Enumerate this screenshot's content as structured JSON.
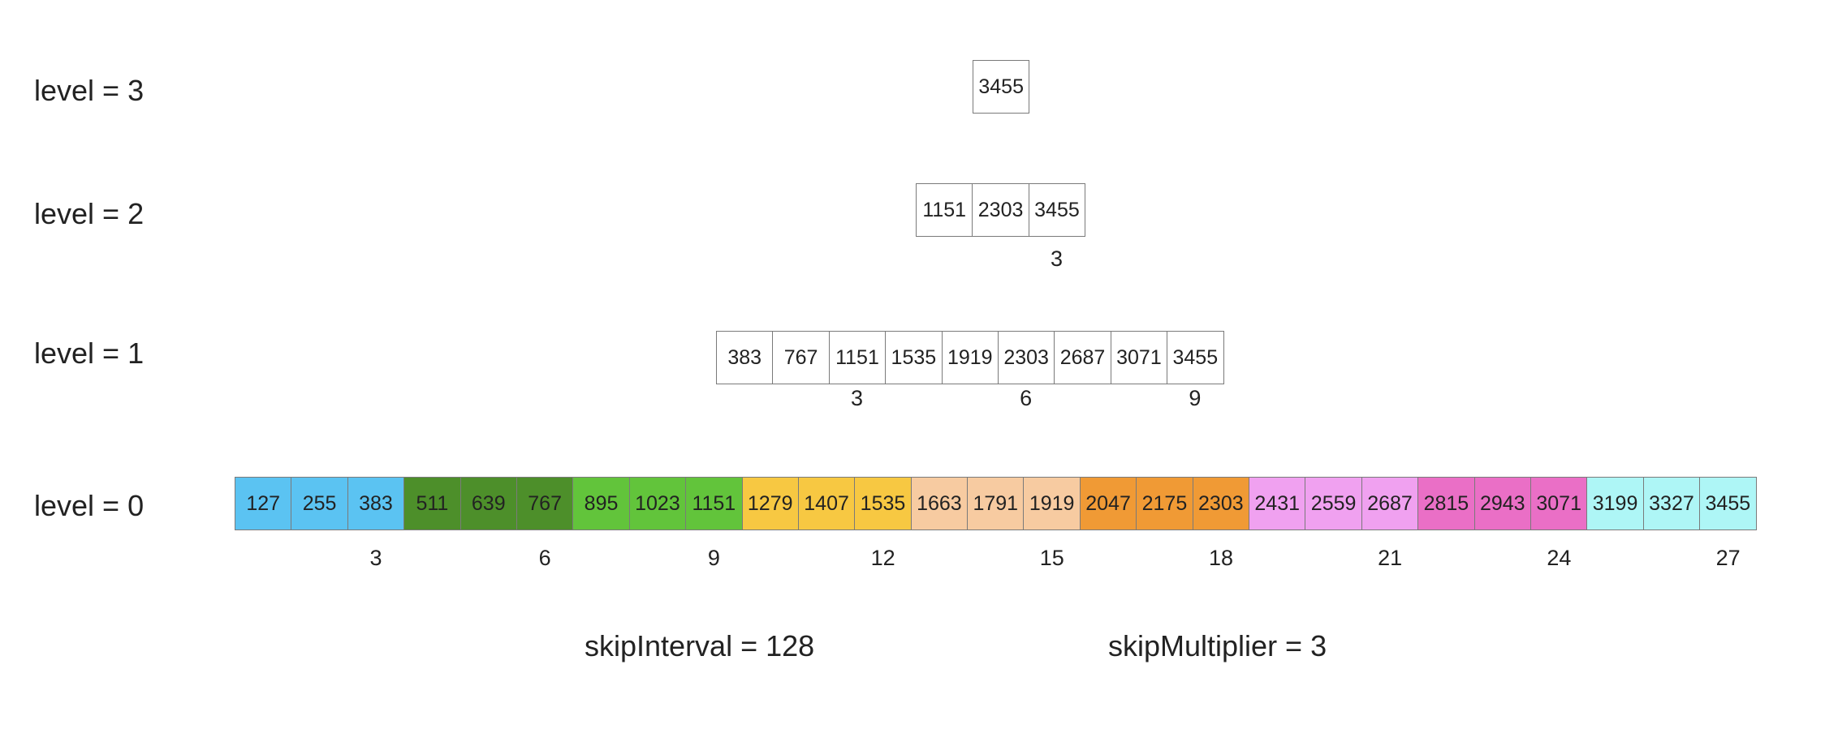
{
  "level_labels": [
    "level = 3",
    "level = 2",
    "level = 1",
    "level = 0"
  ],
  "levels": [
    {
      "name": "level-3",
      "values": [
        "3455"
      ],
      "ticks": []
    },
    {
      "name": "level-2",
      "values": [
        "1151",
        "2303",
        "3455"
      ],
      "ticks": [
        "3"
      ]
    },
    {
      "name": "level-1",
      "values": [
        "383",
        "767",
        "1151",
        "1535",
        "1919",
        "2303",
        "2687",
        "3071",
        "3455"
      ],
      "ticks": [
        "3",
        "6",
        "9"
      ]
    },
    {
      "name": "level-0",
      "values": [
        "127",
        "255",
        "383",
        "511",
        "639",
        "767",
        "895",
        "1023",
        "1151",
        "1279",
        "1407",
        "1535",
        "1663",
        "1791",
        "1919",
        "2047",
        "2175",
        "2303",
        "2431",
        "2559",
        "2687",
        "2815",
        "2943",
        "3071",
        "3199",
        "3327",
        "3455"
      ],
      "ticks": [
        "3",
        "6",
        "9",
        "12",
        "15",
        "18",
        "21",
        "24",
        "27"
      ]
    }
  ],
  "group_colors": [
    "#5bc3f2",
    "#4d8f2a",
    "#62c43b",
    "#f7c842",
    "#f7cba1",
    "#f09a35",
    "#f0a1f0",
    "#ea6fc6",
    "#aef6f6"
  ],
  "skip_interval_label": "skipInterval = 128",
  "skip_multiplier_label": "skipMultiplier = 3"
}
